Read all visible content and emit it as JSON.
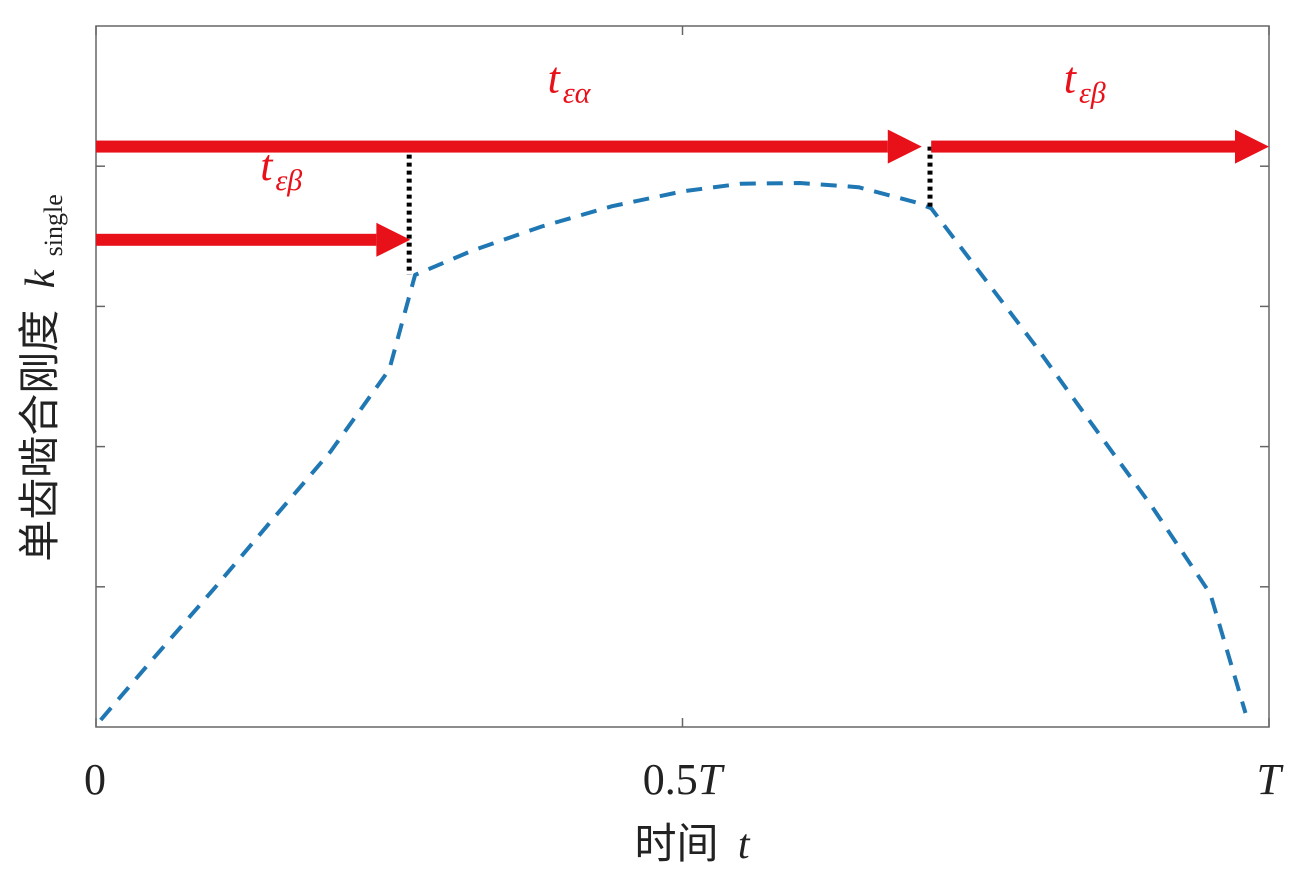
{
  "chart_data": {
    "type": "line",
    "title": "",
    "xlabel": {
      "main": "时间",
      "var": "t"
    },
    "ylabel": {
      "main": "单齿啮合刚度",
      "var": "k",
      "sub": "single"
    },
    "xlim": [
      0,
      1
    ],
    "ylim": [
      0,
      1
    ],
    "x_tick_labels": [
      {
        "x": 0,
        "label": "0"
      },
      {
        "x": 0.5,
        "label": "0.5",
        "suffix": "T"
      },
      {
        "x": 1,
        "label": "",
        "suffix": "T"
      }
    ],
    "x_minor_ticks": [
      0,
      0.5,
      1
    ],
    "y_minor_ticks": [
      0.2,
      0.4,
      0.6,
      0.8
    ],
    "grid": false,
    "series": [
      {
        "style": "dashed",
        "color": "#1f77b4",
        "points": [
          [
            0.004,
            0.01
          ],
          [
            0.05,
            0.1
          ],
          [
            0.1,
            0.196
          ],
          [
            0.15,
            0.295
          ],
          [
            0.2,
            0.393
          ],
          [
            0.25,
            0.51
          ],
          [
            0.272,
            0.645
          ],
          [
            0.32,
            0.679
          ],
          [
            0.38,
            0.714
          ],
          [
            0.44,
            0.743
          ],
          [
            0.5,
            0.764
          ],
          [
            0.55,
            0.775
          ],
          [
            0.6,
            0.776
          ],
          [
            0.65,
            0.77
          ],
          [
            0.7,
            0.748
          ],
          [
            0.712,
            0.74
          ],
          [
            0.75,
            0.656
          ],
          [
            0.8,
            0.546
          ],
          [
            0.85,
            0.43
          ],
          [
            0.9,
            0.315
          ],
          [
            0.95,
            0.19
          ],
          [
            0.98,
            0.02
          ]
        ]
      }
    ],
    "annotations": {
      "arrows": [
        {
          "x_start": 0.0,
          "x_end": 0.268,
          "y": 0.695,
          "label_base": "t",
          "label_sub": "εβ",
          "label_x": 0.14,
          "label_y": 0.78
        },
        {
          "x_start": 0.0,
          "x_end": 0.704,
          "y": 0.828,
          "label_base": "t",
          "label_sub": "εα",
          "label_x": 0.385,
          "label_y": 0.905
        },
        {
          "x_start": 0.712,
          "x_end": 1.0,
          "y": 0.828,
          "label_base": "t",
          "label_sub": "εβ",
          "label_x": 0.825,
          "label_y": 0.905
        }
      ],
      "guides": [
        {
          "x": 0.267,
          "y_from": 0.645,
          "y_to": 0.828
        },
        {
          "x": 0.711,
          "y_from": 0.74,
          "y_to": 0.828
        }
      ],
      "arrow_color": "#e8111a",
      "guide_color": "#000000"
    }
  }
}
